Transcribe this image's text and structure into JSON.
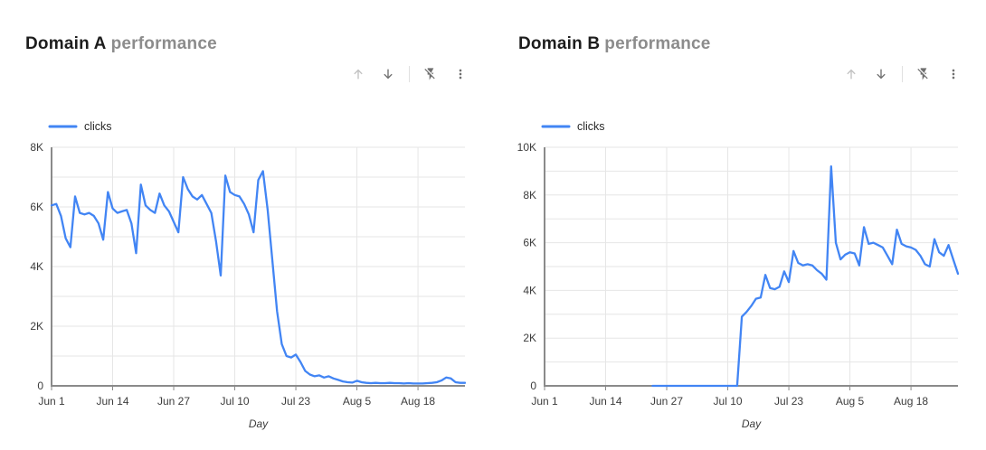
{
  "colors": {
    "line": "#4285f4",
    "grid": "#e6e6e6",
    "axis": "#8a8a8a",
    "tick_label": "#3c3c3c",
    "legend_text": "#2a2a2a",
    "title_main": "#1d1d1d",
    "title_sub": "#8c8c8c",
    "icon": "#6f6f6f",
    "icon_disabled": "#c1c1c1",
    "divider": "#e0e0e0"
  },
  "toolbar": {
    "buttons": [
      {
        "name": "move-up",
        "icon": "arrow-up-icon",
        "state": "disabled"
      },
      {
        "name": "move-down",
        "icon": "arrow-down-icon",
        "state": "enabled"
      },
      {
        "name": "divider",
        "icon": "divider",
        "state": "static"
      },
      {
        "name": "quick-actions",
        "icon": "flash-off-icon",
        "state": "enabled"
      },
      {
        "name": "more-options",
        "icon": "kebab-menu-icon",
        "state": "enabled"
      }
    ]
  },
  "charts": [
    {
      "title": "Domain A",
      "subtitle": "performance",
      "legend": "clicks"
    },
    {
      "title": "Domain B",
      "subtitle": "performance",
      "legend": "clicks"
    }
  ],
  "chart_data": [
    {
      "type": "line",
      "title": "Domain A performance",
      "xlabel": "Day",
      "ylabel": "",
      "x_start": "Jun 1",
      "x_end": "Aug 28",
      "x_tick_labels": [
        "Jun 1",
        "Jun 14",
        "Jun 27",
        "Jul 10",
        "Jul 23",
        "Aug 5",
        "Aug 18"
      ],
      "x_tick_day_indices": [
        0,
        13,
        26,
        39,
        52,
        65,
        78
      ],
      "ylim": [
        0,
        8000
      ],
      "y_grid_step": 1000,
      "y_label_step": 2000,
      "y_tick_labels": [
        "0",
        "2K",
        "4K",
        "6K",
        "8K"
      ],
      "grid": true,
      "legend_position": "top-left",
      "line_color": "#4285f4",
      "series": [
        {
          "name": "clicks",
          "values": [
            6050,
            6100,
            5700,
            4950,
            4650,
            6350,
            5800,
            5750,
            5800,
            5700,
            5450,
            4900,
            6500,
            5950,
            5800,
            5850,
            5900,
            5450,
            4450,
            6750,
            6050,
            5900,
            5800,
            6450,
            6050,
            5850,
            5500,
            5150,
            7000,
            6600,
            6350,
            6250,
            6400,
            6100,
            5800,
            4850,
            3700,
            7050,
            6500,
            6400,
            6350,
            6100,
            5750,
            5150,
            6900,
            7200,
            5900,
            4200,
            2500,
            1400,
            1000,
            950,
            1050,
            800,
            500,
            380,
            320,
            350,
            280,
            320,
            250,
            200,
            150,
            120,
            110,
            170,
            120,
            100,
            90,
            100,
            90,
            90,
            100,
            90,
            90,
            80,
            90,
            80,
            80,
            80,
            90,
            100,
            120,
            180,
            280,
            250,
            120,
            100,
            100
          ]
        }
      ]
    },
    {
      "type": "line",
      "title": "Domain B performance",
      "xlabel": "Day",
      "ylabel": "",
      "x_start": "Jun 1",
      "x_end": "Aug 28",
      "x_tick_labels": [
        "Jun 1",
        "Jun 14",
        "Jun 27",
        "Jul 10",
        "Jul 23",
        "Aug 5",
        "Aug 18"
      ],
      "x_tick_day_indices": [
        0,
        13,
        26,
        39,
        52,
        65,
        78
      ],
      "ylim": [
        0,
        10000
      ],
      "y_grid_step": 1000,
      "y_label_step": 2000,
      "y_tick_labels": [
        "0",
        "2K",
        "4K",
        "6K",
        "8K",
        "10K"
      ],
      "grid": true,
      "legend_position": "top-left",
      "line_color": "#4285f4",
      "series": [
        {
          "name": "clicks",
          "values": [
            null,
            null,
            null,
            null,
            null,
            null,
            null,
            null,
            null,
            null,
            null,
            null,
            null,
            null,
            null,
            null,
            null,
            null,
            null,
            null,
            null,
            null,
            null,
            0,
            0,
            0,
            0,
            0,
            0,
            0,
            0,
            0,
            0,
            0,
            0,
            0,
            0,
            0,
            0,
            0,
            0,
            0,
            2900,
            3100,
            3350,
            3650,
            3700,
            4650,
            4100,
            4050,
            4150,
            4800,
            4350,
            5650,
            5150,
            5050,
            5100,
            5050,
            4850,
            4700,
            4450,
            9200,
            6000,
            5300,
            5500,
            5600,
            5550,
            5050,
            6650,
            5950,
            6000,
            5900,
            5800,
            5450,
            5100,
            6550,
            5950,
            5850,
            5800,
            5700,
            5450,
            5100,
            5000,
            6150,
            5600,
            5450,
            5900,
            5300,
            4700
          ]
        }
      ]
    }
  ]
}
